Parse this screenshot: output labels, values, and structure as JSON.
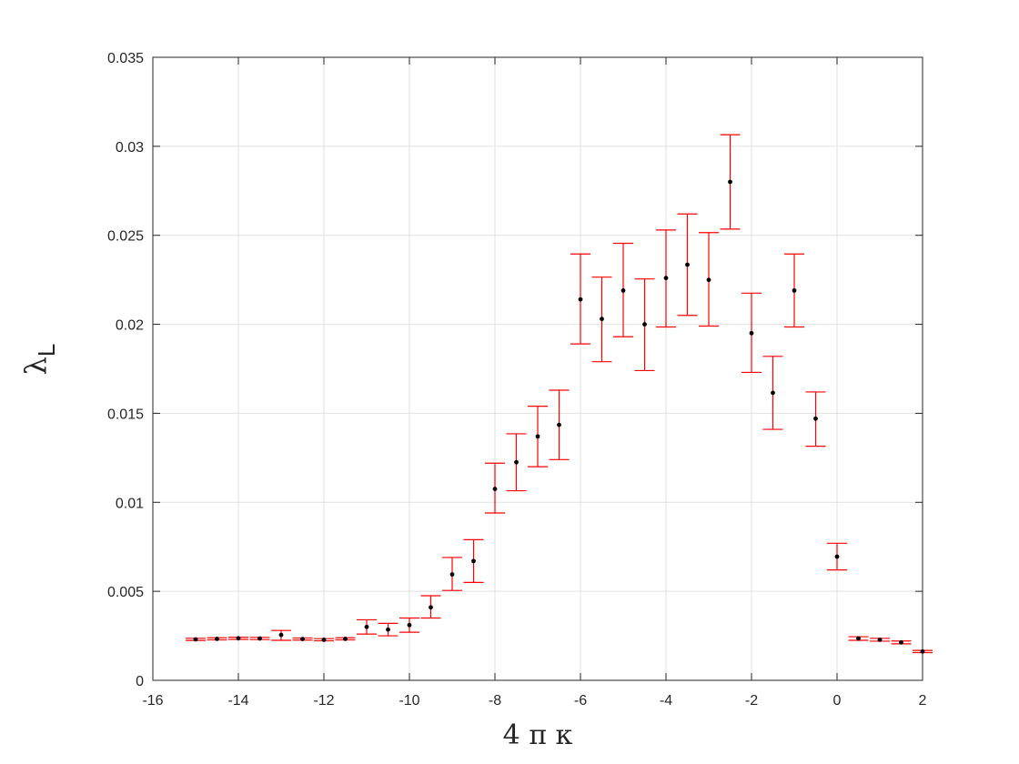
{
  "chart_data": {
    "type": "scatter",
    "xlabel": "4 π κ",
    "ylabel_main": "λ",
    "ylabel_sub": "L",
    "xlim": [
      -16,
      2
    ],
    "ylim": [
      0,
      0.035
    ],
    "xticks": [
      -16,
      -14,
      -12,
      -10,
      -8,
      -6,
      -4,
      -2,
      0,
      2
    ],
    "xtick_labels": [
      "-16",
      "-14",
      "-12",
      "-10",
      "-8",
      "-6",
      "-4",
      "-2",
      "0",
      "2"
    ],
    "yticks": [
      0,
      0.005,
      0.01,
      0.015,
      0.02,
      0.025,
      0.03,
      0.035
    ],
    "ytick_labels": [
      "0",
      "0.005",
      "0.01",
      "0.015",
      "0.02",
      "0.025",
      "0.03",
      "0.035"
    ],
    "grid": true,
    "colors": {
      "marker": "#000000",
      "errorbar": "#ff0000",
      "grid": "#e0e0e0",
      "axis": "#262626"
    },
    "points": [
      {
        "x": -15.0,
        "y": 0.0023,
        "lo": 0.00224,
        "hi": 0.00236
      },
      {
        "x": -14.5,
        "y": 0.00233,
        "lo": 0.00227,
        "hi": 0.00239
      },
      {
        "x": -14.0,
        "y": 0.00236,
        "lo": 0.0023,
        "hi": 0.00242
      },
      {
        "x": -13.5,
        "y": 0.00235,
        "lo": 0.00229,
        "hi": 0.00241
      },
      {
        "x": -13.0,
        "y": 0.00255,
        "lo": 0.00225,
        "hi": 0.0028
      },
      {
        "x": -12.5,
        "y": 0.00232,
        "lo": 0.00226,
        "hi": 0.00238
      },
      {
        "x": -12.0,
        "y": 0.00228,
        "lo": 0.00222,
        "hi": 0.00234
      },
      {
        "x": -11.5,
        "y": 0.00233,
        "lo": 0.00227,
        "hi": 0.00239
      },
      {
        "x": -11.0,
        "y": 0.003,
        "lo": 0.0026,
        "hi": 0.0034
      },
      {
        "x": -10.5,
        "y": 0.00285,
        "lo": 0.0025,
        "hi": 0.0032
      },
      {
        "x": -10.0,
        "y": 0.0031,
        "lo": 0.0027,
        "hi": 0.0035
      },
      {
        "x": -9.5,
        "y": 0.0041,
        "lo": 0.0035,
        "hi": 0.00475
      },
      {
        "x": -9.0,
        "y": 0.00595,
        "lo": 0.00505,
        "hi": 0.0069
      },
      {
        "x": -8.5,
        "y": 0.0067,
        "lo": 0.0055,
        "hi": 0.0079
      },
      {
        "x": -8.0,
        "y": 0.01075,
        "lo": 0.0094,
        "hi": 0.0122
      },
      {
        "x": -7.5,
        "y": 0.01225,
        "lo": 0.01065,
        "hi": 0.01385
      },
      {
        "x": -7.0,
        "y": 0.0137,
        "lo": 0.012,
        "hi": 0.0154
      },
      {
        "x": -6.5,
        "y": 0.01435,
        "lo": 0.0124,
        "hi": 0.0163
      },
      {
        "x": -6.0,
        "y": 0.0214,
        "lo": 0.0189,
        "hi": 0.02395
      },
      {
        "x": -5.5,
        "y": 0.0203,
        "lo": 0.0179,
        "hi": 0.02265
      },
      {
        "x": -5.0,
        "y": 0.0219,
        "lo": 0.0193,
        "hi": 0.02455
      },
      {
        "x": -4.5,
        "y": 0.02,
        "lo": 0.0174,
        "hi": 0.02255
      },
      {
        "x": -4.0,
        "y": 0.0226,
        "lo": 0.01985,
        "hi": 0.0253
      },
      {
        "x": -3.5,
        "y": 0.02335,
        "lo": 0.0205,
        "hi": 0.0262
      },
      {
        "x": -3.0,
        "y": 0.0225,
        "lo": 0.0199,
        "hi": 0.02515
      },
      {
        "x": -2.5,
        "y": 0.028,
        "lo": 0.02535,
        "hi": 0.03065
      },
      {
        "x": -2.0,
        "y": 0.0195,
        "lo": 0.0173,
        "hi": 0.02175
      },
      {
        "x": -1.5,
        "y": 0.01615,
        "lo": 0.0141,
        "hi": 0.0182
      },
      {
        "x": -1.0,
        "y": 0.0219,
        "lo": 0.01985,
        "hi": 0.02395
      },
      {
        "x": -0.5,
        "y": 0.0147,
        "lo": 0.01315,
        "hi": 0.0162
      },
      {
        "x": 0.0,
        "y": 0.00695,
        "lo": 0.0062,
        "hi": 0.0077
      },
      {
        "x": 0.5,
        "y": 0.00235,
        "lo": 0.00225,
        "hi": 0.00245
      },
      {
        "x": 1.0,
        "y": 0.00228,
        "lo": 0.0022,
        "hi": 0.00236
      },
      {
        "x": 1.5,
        "y": 0.00213,
        "lo": 0.00205,
        "hi": 0.00221
      },
      {
        "x": 2.0,
        "y": 0.00162,
        "lo": 0.00156,
        "hi": 0.00168
      }
    ]
  }
}
